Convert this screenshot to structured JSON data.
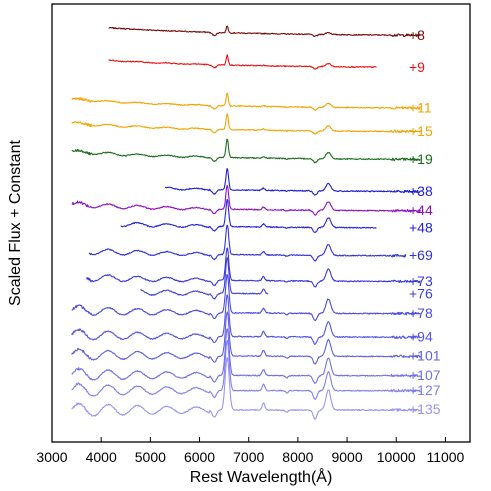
{
  "chart_data": {
    "type": "line",
    "title": "",
    "xlabel": "Rest Wavelength(Å)",
    "ylabel": "Scaled Flux + Constant",
    "xlim": [
      3000,
      11500
    ],
    "x_ticks": [
      3000,
      4000,
      5000,
      6000,
      7000,
      8000,
      9000,
      10000,
      11000
    ],
    "x_tick_labels": [
      "3000",
      "4000",
      "5000",
      "6000",
      "7000",
      "8000",
      "9000",
      "10000",
      "11000"
    ],
    "y_tick_labels": false,
    "grid": false,
    "legend": "none",
    "series": [
      {
        "name": "+8",
        "color": "#7a0a0a",
        "x_range": [
          4150,
          10500
        ],
        "offset": 17.5
      },
      {
        "name": "+9",
        "color": "#ee1111",
        "x_range": [
          4150,
          9600
        ],
        "offset": 16.0
      },
      {
        "name": "+11",
        "color": "#f5a300",
        "x_range": [
          3400,
          10500
        ],
        "offset": 14.1
      },
      {
        "name": "+15",
        "color": "#f5a300",
        "x_range": [
          3400,
          10500
        ],
        "offset": 13.0
      },
      {
        "name": "+19",
        "color": "#1a6f1a",
        "x_range": [
          3400,
          10500
        ],
        "offset": 11.7
      },
      {
        "name": "+38",
        "color": "#2020d8",
        "x_range": [
          5300,
          10500
        ],
        "offset": 10.2
      },
      {
        "name": "+44",
        "color": "#9010c8",
        "x_range": [
          3400,
          10500
        ],
        "offset": 9.3
      },
      {
        "name": "+48",
        "color": "#2424dc",
        "x_range": [
          4400,
          9600
        ],
        "offset": 8.5
      },
      {
        "name": "+69",
        "color": "#3232dc",
        "x_range": [
          3750,
          10200
        ],
        "offset": 7.2
      },
      {
        "name": "+73",
        "color": "#3838de",
        "x_range": [
          3700,
          10500
        ],
        "offset": 6.0
      },
      {
        "name": "+76",
        "color": "#4040e0",
        "x_range": [
          4800,
          7400
        ],
        "offset": 5.4
      },
      {
        "name": "+78",
        "color": "#4a4ae2",
        "x_range": [
          3400,
          10500
        ],
        "offset": 4.5
      },
      {
        "name": "+94",
        "color": "#5454e4",
        "x_range": [
          3400,
          10500
        ],
        "offset": 3.4
      },
      {
        "name": "+101",
        "color": "#6060e6",
        "x_range": [
          3400,
          10500
        ],
        "offset": 2.5
      },
      {
        "name": "+107",
        "color": "#7070ea",
        "x_range": [
          3400,
          10500
        ],
        "offset": 1.6
      },
      {
        "name": "+127",
        "color": "#8080ee",
        "x_range": [
          3400,
          10500
        ],
        "offset": 0.9
      },
      {
        "name": "+135",
        "color": "#9a94f2",
        "x_range": [
          3400,
          10500
        ],
        "offset": 0.0
      }
    ]
  }
}
